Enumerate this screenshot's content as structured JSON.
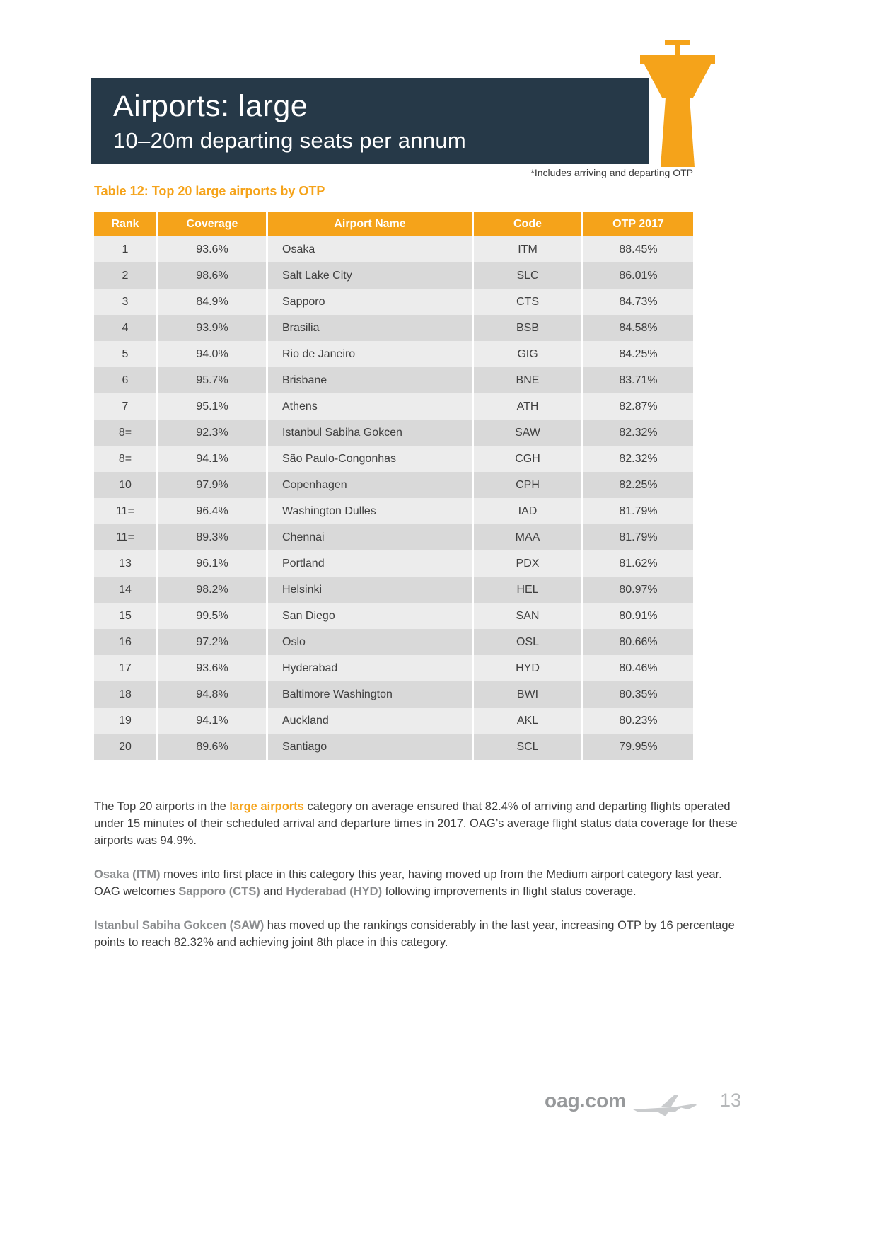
{
  "header": {
    "title": "Airports: large",
    "subtitle": "10–20m departing seats per annum",
    "note": "*Includes arriving and departing OTP"
  },
  "table": {
    "title": "Table 12: Top 20 large airports by OTP",
    "columns": [
      "Rank",
      "Coverage",
      "Airport Name",
      "Code",
      "OTP 2017"
    ],
    "rows": [
      [
        "1",
        "93.6%",
        "Osaka",
        "ITM",
        "88.45%"
      ],
      [
        "2",
        "98.6%",
        "Salt Lake City",
        "SLC",
        "86.01%"
      ],
      [
        "3",
        "84.9%",
        "Sapporo",
        "CTS",
        "84.73%"
      ],
      [
        "4",
        "93.9%",
        "Brasilia",
        "BSB",
        "84.58%"
      ],
      [
        "5",
        "94.0%",
        "Rio de Janeiro",
        "GIG",
        "84.25%"
      ],
      [
        "6",
        "95.7%",
        "Brisbane",
        "BNE",
        "83.71%"
      ],
      [
        "7",
        "95.1%",
        "Athens",
        "ATH",
        "82.87%"
      ],
      [
        "8=",
        "92.3%",
        "Istanbul Sabiha Gokcen",
        "SAW",
        "82.32%"
      ],
      [
        "8=",
        "94.1%",
        "São Paulo-Congonhas",
        "CGH",
        "82.32%"
      ],
      [
        "10",
        "97.9%",
        "Copenhagen",
        "CPH",
        "82.25%"
      ],
      [
        "11=",
        "96.4%",
        "Washington Dulles",
        "IAD",
        "81.79%"
      ],
      [
        "11=",
        "89.3%",
        "Chennai",
        "MAA",
        "81.79%"
      ],
      [
        "13",
        "96.1%",
        "Portland",
        "PDX",
        "81.62%"
      ],
      [
        "14",
        "98.2%",
        "Helsinki",
        "HEL",
        "80.97%"
      ],
      [
        "15",
        "99.5%",
        "San Diego",
        "SAN",
        "80.91%"
      ],
      [
        "16",
        "97.2%",
        "Oslo",
        "OSL",
        "80.66%"
      ],
      [
        "17",
        "93.6%",
        "Hyderabad",
        "HYD",
        "80.46%"
      ],
      [
        "18",
        "94.8%",
        "Baltimore Washington",
        "BWI",
        "80.35%"
      ],
      [
        "19",
        "94.1%",
        "Auckland",
        "AKL",
        "80.23%"
      ],
      [
        "20",
        "89.6%",
        "Santiago",
        "SCL",
        "79.95%"
      ]
    ]
  },
  "paragraphs": [
    {
      "segments": [
        {
          "text": "The Top 20 airports in the ",
          "style": "normal"
        },
        {
          "text": "large airports",
          "style": "orange"
        },
        {
          "text": " category on average ensured that 82.4% of arriving and departing flights operated under 15 minutes of their scheduled arrival and departure times in 2017. OAG’s average flight status data coverage for these airports was 94.9%.",
          "style": "normal"
        }
      ]
    },
    {
      "segments": [
        {
          "text": "Osaka (ITM)",
          "style": "gray"
        },
        {
          "text": " moves into first place in this category this year, having moved up from the Medium airport category last year. OAG welcomes ",
          "style": "normal"
        },
        {
          "text": "Sapporo (CTS)",
          "style": "gray"
        },
        {
          "text": " and ",
          "style": "normal"
        },
        {
          "text": "Hyderabad (HYD)",
          "style": "gray"
        },
        {
          "text": " following improvements in flight status coverage.",
          "style": "normal"
        }
      ]
    },
    {
      "segments": [
        {
          "text": "Istanbul Sabiha Gokcen (SAW)",
          "style": "gray"
        },
        {
          "text": " has moved up the rankings considerably in the last year, increasing OTP by 16 percentage points to reach 82.32% and achieving joint 8th place in this category.",
          "style": "normal"
        }
      ]
    }
  ],
  "footer": {
    "logo_text": "oag.com",
    "page_number": "13"
  },
  "colors": {
    "accent_orange": "#F5A31A",
    "banner_navy": "#263948",
    "row_light": "#ECECEC",
    "row_dark": "#D9D9D9",
    "gray_highlight": "#8A8C8E"
  }
}
